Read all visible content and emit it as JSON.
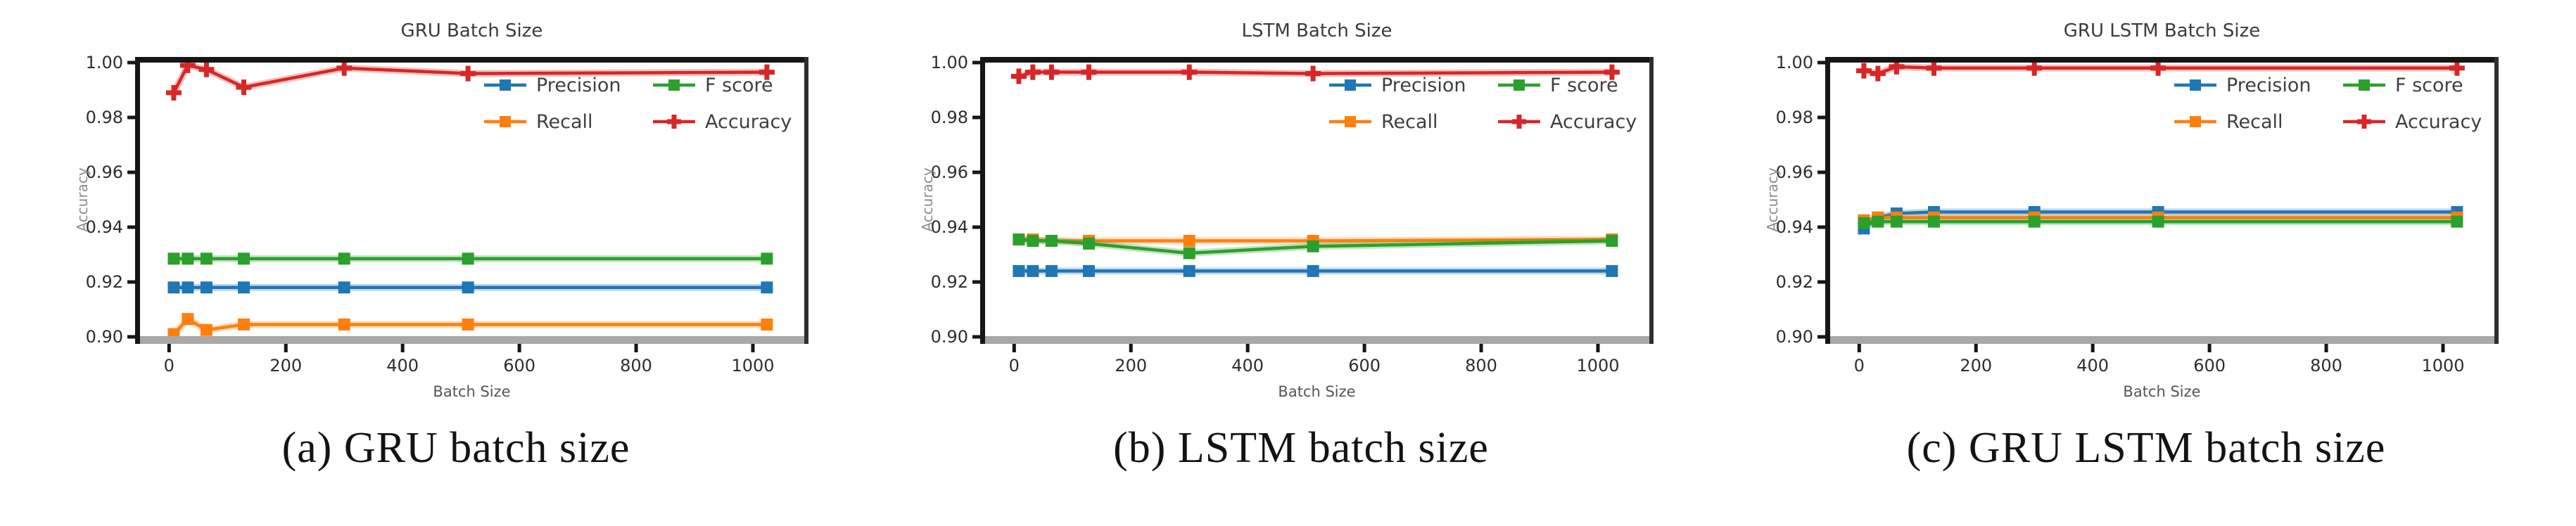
{
  "page": {
    "background": "#ffffff"
  },
  "colors": {
    "precision": "#1f77b4",
    "recall": "#ff7f0e",
    "fscore": "#2ca02c",
    "accuracy": "#d62728",
    "spine_dark": "#161616",
    "spine_right": "#2e2e2e",
    "bottom_band": "#a8a8a8",
    "tick_label": "#2e2e2e",
    "axis_label": "#555555",
    "ylabel_gray": "#8c8c8c",
    "title_gray": "#3c3c3c",
    "legend_text": "#3f3f3f"
  },
  "chart_data": [
    {
      "id": "a",
      "type": "line",
      "title": "GRU Batch Size",
      "caption": "(a) GRU batch size",
      "xlabel": "Batch Size",
      "ylabel": "Accuracy",
      "xlim": [
        -51,
        1088
      ],
      "ylim": [
        0.9,
        1.0
      ],
      "xticks": [
        0,
        200,
        400,
        600,
        800,
        1000
      ],
      "yticks": [
        0.9,
        0.92,
        0.94,
        0.96,
        0.98,
        1.0
      ],
      "grid": false,
      "legend": {
        "position": "upper right",
        "columns": 2
      },
      "x": [
        8,
        32,
        64,
        128,
        300,
        512,
        1024
      ],
      "series": [
        {
          "name": "Precision",
          "color_key": "precision",
          "marker": "square",
          "values": [
            0.918,
            0.918,
            0.918,
            0.918,
            0.918,
            0.918,
            0.918
          ]
        },
        {
          "name": "Recall",
          "color_key": "recall",
          "marker": "square",
          "values": [
            0.901,
            0.9065,
            0.9025,
            0.9045,
            0.9045,
            0.9045,
            0.9045
          ]
        },
        {
          "name": "F score",
          "color_key": "fscore",
          "marker": "square",
          "values": [
            0.9285,
            0.9285,
            0.9285,
            0.9285,
            0.9285,
            0.9285,
            0.9285
          ]
        },
        {
          "name": "Accuracy",
          "color_key": "accuracy",
          "marker": "plus",
          "values": [
            0.989,
            0.999,
            0.9975,
            0.991,
            0.998,
            0.996,
            0.9965
          ]
        }
      ]
    },
    {
      "id": "b",
      "type": "line",
      "title": "LSTM Batch Size",
      "caption": "(b) LSTM batch size",
      "xlabel": "Batch Size",
      "ylabel": "Accuracy",
      "xlim": [
        -51,
        1088
      ],
      "ylim": [
        0.9,
        1.0
      ],
      "xticks": [
        0,
        200,
        400,
        600,
        800,
        1000
      ],
      "yticks": [
        0.9,
        0.92,
        0.94,
        0.96,
        0.98,
        1.0
      ],
      "grid": false,
      "legend": {
        "position": "upper right",
        "columns": 2
      },
      "x": [
        8,
        32,
        64,
        128,
        300,
        512,
        1024
      ],
      "series": [
        {
          "name": "Precision",
          "color_key": "precision",
          "marker": "square",
          "values": [
            0.924,
            0.924,
            0.924,
            0.924,
            0.924,
            0.924,
            0.924
          ]
        },
        {
          "name": "Recall",
          "color_key": "recall",
          "marker": "square",
          "values": [
            0.9355,
            0.9355,
            0.935,
            0.935,
            0.935,
            0.935,
            0.9355
          ]
        },
        {
          "name": "F score",
          "color_key": "fscore",
          "marker": "square",
          "values": [
            0.9355,
            0.935,
            0.935,
            0.934,
            0.9305,
            0.933,
            0.935
          ]
        },
        {
          "name": "Accuracy",
          "color_key": "accuracy",
          "marker": "plus",
          "values": [
            0.995,
            0.9965,
            0.9965,
            0.9965,
            0.9965,
            0.996,
            0.9965
          ]
        }
      ]
    },
    {
      "id": "c",
      "type": "line",
      "title": "GRU LSTM Batch Size",
      "caption": "(c) GRU LSTM batch size",
      "xlabel": "Batch Size",
      "ylabel": "Accuracy",
      "xlim": [
        -51,
        1088
      ],
      "ylim": [
        0.9,
        1.0
      ],
      "xticks": [
        0,
        200,
        400,
        600,
        800,
        1000
      ],
      "yticks": [
        0.9,
        0.92,
        0.94,
        0.96,
        0.98,
        1.0
      ],
      "grid": false,
      "legend": {
        "position": "upper right",
        "columns": 2
      },
      "x": [
        8,
        32,
        64,
        128,
        300,
        512,
        1024
      ],
      "series": [
        {
          "name": "Precision",
          "color_key": "precision",
          "marker": "square",
          "values": [
            0.9395,
            0.9435,
            0.945,
            0.9455,
            0.9455,
            0.9455,
            0.9455
          ]
        },
        {
          "name": "Recall",
          "color_key": "recall",
          "marker": "square",
          "values": [
            0.9425,
            0.9435,
            0.9435,
            0.9435,
            0.9435,
            0.9435,
            0.9435
          ]
        },
        {
          "name": "F score",
          "color_key": "fscore",
          "marker": "square",
          "values": [
            0.9415,
            0.942,
            0.942,
            0.942,
            0.942,
            0.942,
            0.942
          ]
        },
        {
          "name": "Accuracy",
          "color_key": "accuracy",
          "marker": "plus",
          "values": [
            0.997,
            0.996,
            0.9985,
            0.998,
            0.998,
            0.998,
            0.998
          ]
        }
      ]
    }
  ]
}
